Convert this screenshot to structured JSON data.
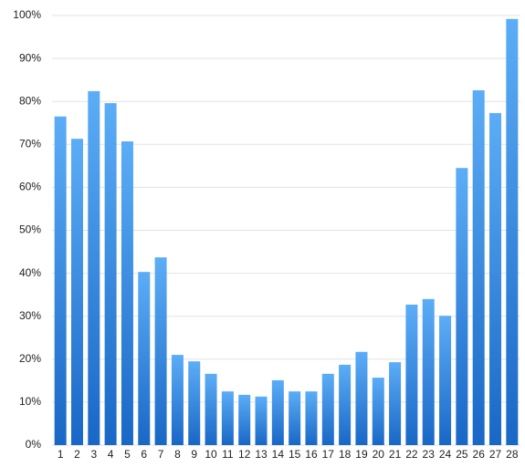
{
  "chart_data": {
    "type": "bar",
    "categories": [
      "1",
      "2",
      "3",
      "4",
      "5",
      "6",
      "7",
      "8",
      "9",
      "10",
      "11",
      "12",
      "13",
      "14",
      "15",
      "16",
      "17",
      "18",
      "19",
      "20",
      "21",
      "22",
      "23",
      "24",
      "25",
      "26",
      "27",
      "28"
    ],
    "values": [
      76.5,
      71.3,
      82.4,
      79.6,
      70.7,
      40.3,
      43.7,
      21,
      19.5,
      16.6,
      12.5,
      11.7,
      11.3,
      15.1,
      12.5,
      12.5,
      16.6,
      18.7,
      21.7,
      15.7,
      19.3,
      32.7,
      34,
      30.1,
      64.5,
      82.6,
      77.3,
      99.2
    ],
    "gradient": {
      "top": "#5cadf7",
      "bottom": "#1967c6"
    },
    "ylim": [
      0,
      100
    ],
    "yticks": [
      {
        "value": 0,
        "label": "0%"
      },
      {
        "value": 10,
        "label": "10%"
      },
      {
        "value": 20,
        "label": "20%"
      },
      {
        "value": 30,
        "label": "30%"
      },
      {
        "value": 40,
        "label": "40%"
      },
      {
        "value": 50,
        "label": "50%"
      },
      {
        "value": 60,
        "label": "60%"
      },
      {
        "value": 70,
        "label": "70%"
      },
      {
        "value": 80,
        "label": "80%"
      },
      {
        "value": 90,
        "label": "90%"
      },
      {
        "value": 100,
        "label": "100%"
      }
    ],
    "grid": true
  }
}
